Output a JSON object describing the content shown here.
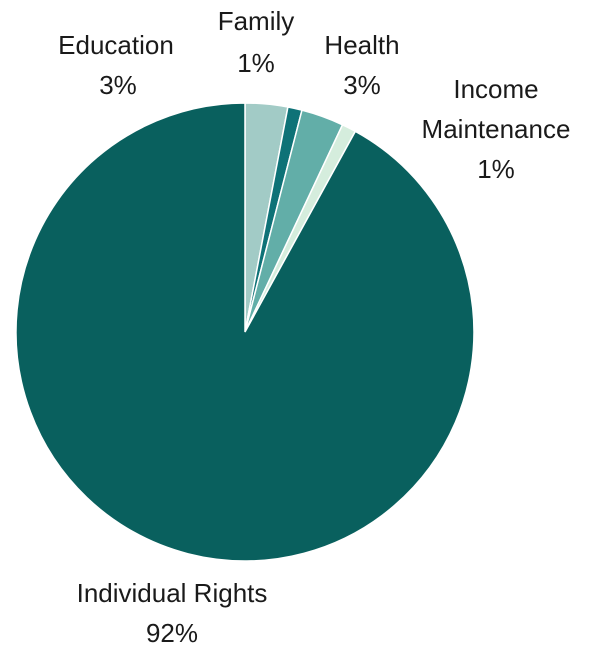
{
  "chart_data": {
    "type": "pie",
    "title": "",
    "start_angle_deg": 0,
    "direction": "clockwise",
    "slices": [
      {
        "label": "Education",
        "pct_label": "3%",
        "value": 3,
        "color": "#a2cbc6"
      },
      {
        "label": "Family",
        "pct_label": "1%",
        "value": 1,
        "color": "#0e7277"
      },
      {
        "label": "Health",
        "pct_label": "3%",
        "value": 3,
        "color": "#62aea8"
      },
      {
        "label": "Income Maintenance",
        "pct_label": "1%",
        "value": 1,
        "color": "#d5eddd"
      },
      {
        "label": "Individual Rights",
        "pct_label": "92%",
        "value": 92,
        "color": "#09605e"
      }
    ],
    "legend": "none"
  }
}
